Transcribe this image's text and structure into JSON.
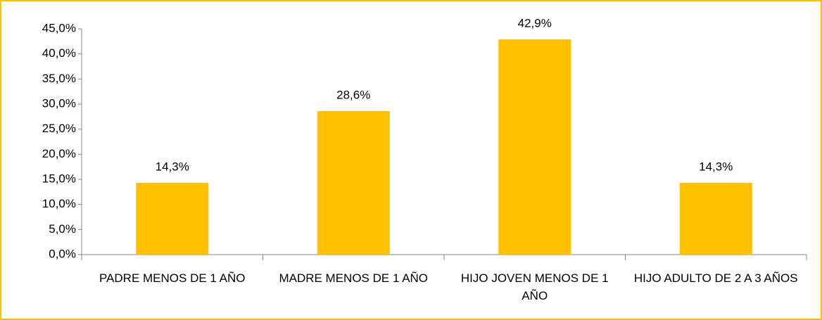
{
  "chart_data": {
    "type": "bar",
    "categories": [
      "PADRE MENOS DE 1 AÑO",
      "MADRE MENOS DE 1 AÑO",
      "HIJO JOVEN MENOS DE 1 AÑO",
      "HIJO ADULTO DE 2 A 3 AÑOS"
    ],
    "values": [
      14.3,
      28.6,
      42.9,
      14.3
    ],
    "value_labels": [
      "14,3%",
      "28,6%",
      "42,9%",
      "14,3%"
    ],
    "color": "#ffc000",
    "ylim": [
      0,
      45
    ],
    "yticks": [
      {
        "value": 0,
        "label": "0,0%"
      },
      {
        "value": 5,
        "label": "5,0%"
      },
      {
        "value": 10,
        "label": "10,0%"
      },
      {
        "value": 15,
        "label": "15,0%"
      },
      {
        "value": 20,
        "label": "20,0%"
      },
      {
        "value": 25,
        "label": "25,0%"
      },
      {
        "value": 30,
        "label": "30,0%"
      },
      {
        "value": 35,
        "label": "35,0%"
      },
      {
        "value": 40,
        "label": "40,0%"
      },
      {
        "value": 45,
        "label": "45,0%"
      }
    ],
    "grid": false
  }
}
